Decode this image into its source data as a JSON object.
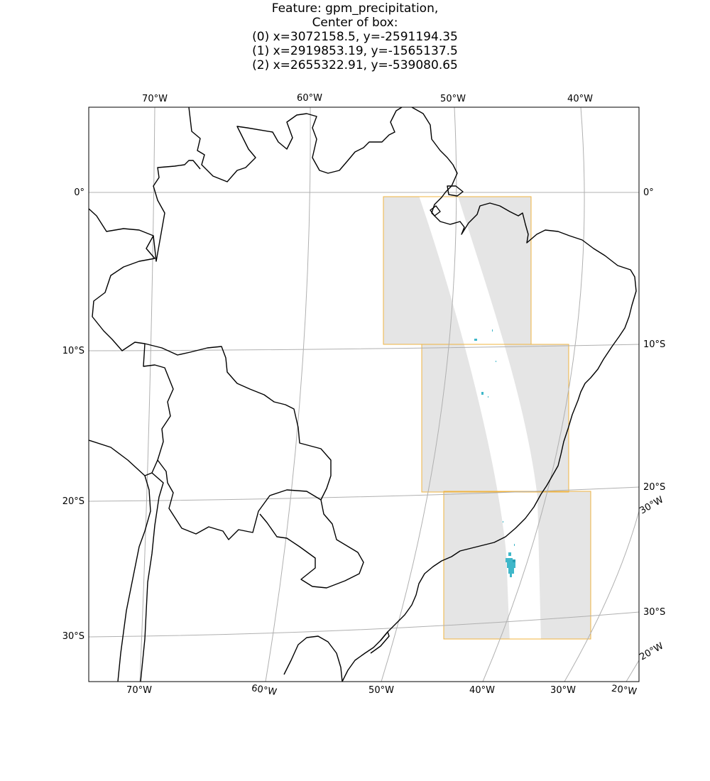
{
  "title": {
    "line1": "Feature: gpm_precipitation,",
    "line2": "Center of box:",
    "boxes": [
      "(0) x=3072158.5, y=-2591194.35",
      "(1) x=2919853.19, y=-1565137.5",
      "(2) x=2655322.91, y=-539080.65"
    ]
  },
  "ticks": {
    "top_lon": [
      "70°W",
      "60°W",
      "50°W",
      "40°W"
    ],
    "bottom_lon": [
      "70°W",
      "60°W",
      "50°W",
      "40°W",
      "30°W",
      "20°W"
    ],
    "left_lat": [
      "0°",
      "10°S",
      "20°S",
      "30°S"
    ],
    "right_lat": [
      "0°",
      "10°S",
      "20°S",
      "30°S"
    ],
    "right_lon": [
      "30°W",
      "20°W"
    ]
  },
  "colors": {
    "box_edge": "#f0b440",
    "box_fill": "#e5e5e5",
    "swath": "#ffffff",
    "gridline": "#b0b0b0",
    "coastline": "#000000",
    "precip": "#3fb7c9"
  },
  "legend": "none",
  "grid": true
}
